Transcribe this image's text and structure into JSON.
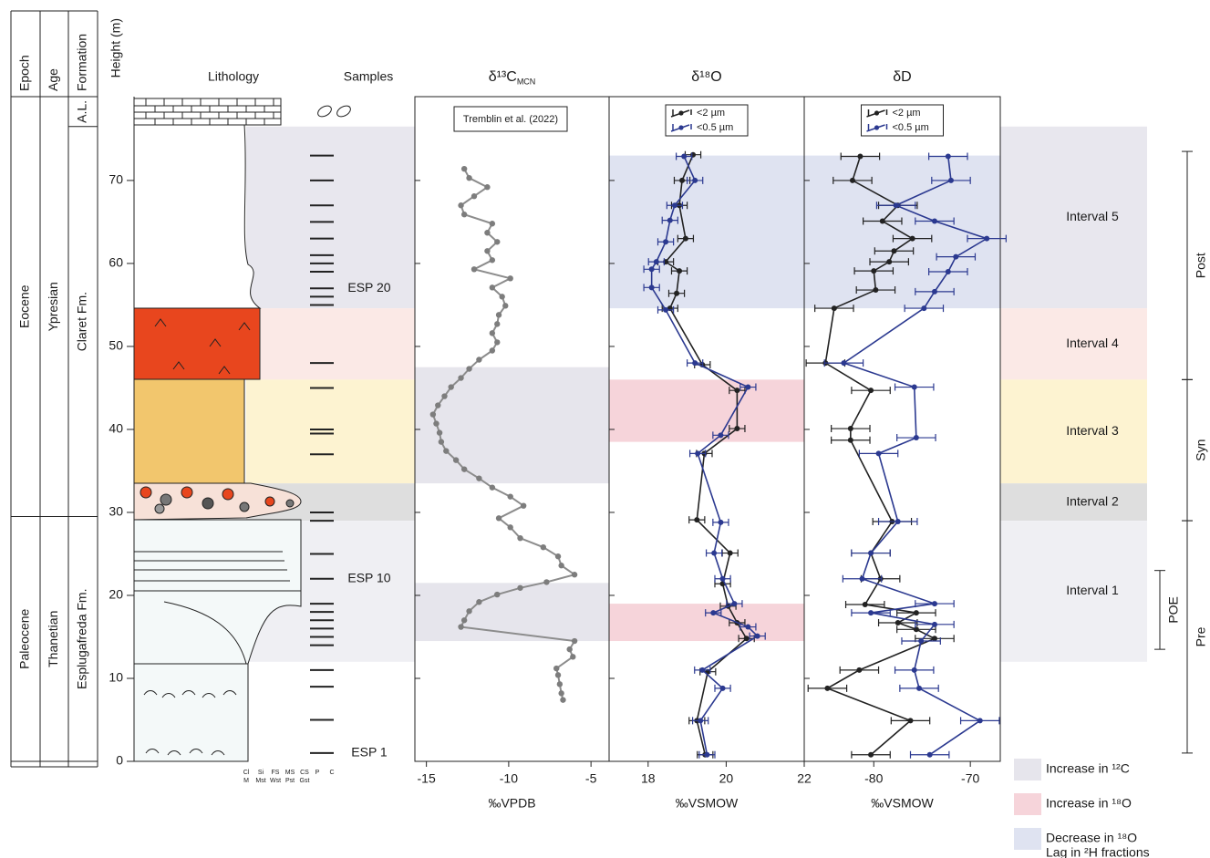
{
  "columns": {
    "headers": [
      "Epoch",
      "Age",
      "Formation"
    ],
    "epochs": [
      {
        "name": "Eocene",
        "range": [
          29.5,
          80.1
        ]
      },
      {
        "name": "Paleocene",
        "range": [
          0,
          29.5
        ]
      }
    ],
    "ages": [
      {
        "name": "Ypresian",
        "range": [
          29.5,
          80.1
        ]
      },
      {
        "name": "Thanetian",
        "range": [
          0,
          29.5
        ]
      }
    ],
    "formations": [
      {
        "name": "A.L.",
        "range": [
          76.5,
          80.1
        ]
      },
      {
        "name": "Claret Fm.",
        "range": [
          29.5,
          76.5
        ]
      },
      {
        "name": "Esplugafreda Fm.",
        "range": [
          0,
          29.5
        ]
      }
    ]
  },
  "height_axis": {
    "label": "Height (m)",
    "ylim": [
      0,
      80.1
    ],
    "yticks": [
      0,
      10,
      20,
      30,
      40,
      50,
      60,
      70
    ]
  },
  "lithology": {
    "title": "Lithology",
    "grain_top": [
      "Cl",
      "Si",
      "FS",
      "MS",
      "CS",
      "P",
      "C"
    ],
    "grain_bottom": [
      "M",
      "Mst",
      "Wst",
      "Pst",
      "Gst"
    ]
  },
  "samples": {
    "title": "Samples",
    "heights": [
      73,
      70,
      67,
      65,
      63,
      61,
      60,
      59,
      57,
      56,
      55,
      48,
      45,
      40,
      39.5,
      37,
      30,
      29,
      25,
      22,
      19,
      18,
      17,
      16,
      15,
      14,
      11,
      9,
      5,
      1
    ],
    "labels": [
      {
        "text": "ESP 20",
        "height": 57
      },
      {
        "text": "ESP 10",
        "height": 22
      },
      {
        "text": "ESP 1",
        "height": 1
      }
    ]
  },
  "intervals": [
    {
      "name": "Interval 5",
      "range": [
        54.6,
        76.5
      ],
      "color": "#e8e7ee"
    },
    {
      "name": "Interval 4",
      "range": [
        46,
        54.6
      ],
      "color": "#fbe9e6"
    },
    {
      "name": "Interval 3",
      "range": [
        33.5,
        46
      ],
      "color": "#fdf3d1"
    },
    {
      "name": "Interval 2",
      "range": [
        29,
        33.5
      ],
      "color": "#dedede"
    },
    {
      "name": "Interval 1",
      "range": [
        12,
        29
      ],
      "color": "#efeff3"
    }
  ],
  "phases": [
    {
      "name": "Post",
      "range": [
        46,
        73.5
      ]
    },
    {
      "name": "Syn",
      "range": [
        29,
        46
      ]
    },
    {
      "name": "Pre",
      "range": [
        1,
        29
      ]
    },
    {
      "name": "POE",
      "range": [
        13.5,
        23
      ]
    }
  ],
  "legend": [
    {
      "lines": [
        "Increase in ¹²C"
      ],
      "color": "#e6e5ec"
    },
    {
      "lines": [
        "Increase in ¹⁸O"
      ],
      "color": "#f6d4da"
    },
    {
      "lines": [
        "Decrease in ¹⁸O",
        "Lag in ²H fractions"
      ],
      "color": "#dfe3f1"
    }
  ],
  "chart_data": [
    {
      "type": "line",
      "title": "δ¹³C",
      "title_subscript": "MCN",
      "xlabel": "‰VPDB",
      "annotation": "Tremblin et al. (2022)",
      "xlim": [
        -15.7,
        -3.9
      ],
      "xticks": [
        -15,
        -10,
        -5
      ],
      "color": "#8c8c8c",
      "highlights": [
        {
          "range": [
            33.5,
            47.5
          ],
          "color": "#e6e5ec"
        },
        {
          "range": [
            14.5,
            21.5
          ],
          "color": "#e6e5ec"
        }
      ],
      "y": [
        7.4,
        8.2,
        9.3,
        10.4,
        11.2,
        12.6,
        13.5,
        14.5,
        16.2,
        17.0,
        18.1,
        19.2,
        20.1,
        20.9,
        21.6,
        22.5,
        23.6,
        24.7,
        25.8,
        26.9,
        28.2,
        29.3,
        30.8,
        31.9,
        33.0,
        34.1,
        35.2,
        36.3,
        37.4,
        38.5,
        39.6,
        40.7,
        41.8,
        42.9,
        44.0,
        45.1,
        46.2,
        47.3,
        48.4,
        49.5,
        50.5,
        51.6,
        52.7,
        53.8,
        54.9,
        56.0,
        57.1,
        58.2,
        59.3,
        60.4,
        61.5,
        62.6,
        63.7,
        64.8,
        65.9,
        67.0,
        68.1,
        69.2,
        70.3,
        71.4
      ],
      "values": [
        -6.7,
        -6.8,
        -6.9,
        -7.0,
        -7.1,
        -6.1,
        -6.3,
        -6.0,
        -12.9,
        -12.7,
        -12.4,
        -11.8,
        -10.7,
        -9.3,
        -7.7,
        -6.0,
        -6.8,
        -7.0,
        -7.9,
        -9.3,
        -9.9,
        -10.6,
        -9.1,
        -9.9,
        -11.0,
        -11.8,
        -12.7,
        -13.2,
        -13.8,
        -14.1,
        -14.2,
        -14.4,
        -14.6,
        -14.3,
        -13.9,
        -13.5,
        -12.9,
        -12.4,
        -11.8,
        -11.0,
        -10.7,
        -11.0,
        -10.7,
        -10.6,
        -10.2,
        -10.4,
        -11.0,
        -9.9,
        -12.1,
        -11.0,
        -11.3,
        -10.7,
        -11.3,
        -11.0,
        -12.7,
        -12.9,
        -12.1,
        -11.3,
        -12.4,
        -12.7
      ]
    },
    {
      "type": "errorbar",
      "title": "δ¹⁸O",
      "xlabel": "‰VSMOW",
      "xlim": [
        17,
        22
      ],
      "xticks": [
        18,
        20,
        22
      ],
      "highlights": [
        {
          "range": [
            54.6,
            73
          ],
          "color": "#dfe3f1"
        },
        {
          "range": [
            38.5,
            46
          ],
          "color": "#f6d4da"
        },
        {
          "range": [
            14.5,
            19
          ],
          "color": "#f6d4da"
        }
      ],
      "series": [
        {
          "name": "<2 µm",
          "color": "#222222",
          "y": [
            0.8,
            4.9,
            10.8,
            14.8,
            16.7,
            18.7,
            21.4,
            25.1,
            29.1,
            37.1,
            40.1,
            44.7,
            47.8,
            54.6,
            56.4,
            59.1,
            60.2,
            63.0,
            67.0,
            70.0,
            73.1
          ],
          "values": [
            19.46,
            19.25,
            19.53,
            20.52,
            20.28,
            20.05,
            19.91,
            20.1,
            19.25,
            19.44,
            20.28,
            20.28,
            19.39,
            18.56,
            18.73,
            18.8,
            18.45,
            18.96,
            18.8,
            18.87,
            19.15
          ],
          "errors": [
            0.2,
            0.2,
            0.2,
            0.2,
            0.2,
            0.2,
            0.2,
            0.2,
            0.2,
            0.2,
            0.2,
            0.2,
            0.2,
            0.2,
            0.2,
            0.2,
            0.2,
            0.2,
            0.2,
            0.2,
            0.2
          ]
        },
        {
          "name": "<0.5 µm",
          "color": "#2b3990",
          "y": [
            0.8,
            4.9,
            8.8,
            11.0,
            15.1,
            16.2,
            17.9,
            19.0,
            22.0,
            25.1,
            28.8,
            37.1,
            39.3,
            45.1,
            48.0,
            54.4,
            57.1,
            59.3,
            60.2,
            62.6,
            65.2,
            67.0,
            70.0,
            72.9
          ],
          "values": [
            19.51,
            19.34,
            19.91,
            19.39,
            20.8,
            20.56,
            19.67,
            20.21,
            19.91,
            19.69,
            19.86,
            19.27,
            19.86,
            20.56,
            19.2,
            18.45,
            18.09,
            18.09,
            18.21,
            18.45,
            18.56,
            18.68,
            19.2,
            18.92
          ],
          "errors": [
            0.2,
            0.2,
            0.2,
            0.2,
            0.2,
            0.2,
            0.2,
            0.2,
            0.2,
            0.2,
            0.2,
            0.2,
            0.2,
            0.2,
            0.2,
            0.2,
            0.2,
            0.2,
            0.2,
            0.2,
            0.2,
            0.2,
            0.2,
            0.2
          ]
        }
      ]
    },
    {
      "type": "errorbar",
      "title": "δD",
      "xlabel": "‰VSMOW",
      "xlim": [
        -87.2,
        -66.9
      ],
      "xticks": [
        -80,
        -70
      ],
      "highlights": [
        {
          "range": [
            54.6,
            73
          ],
          "color": "#dfe3f1"
        }
      ],
      "series": [
        {
          "name": "<2 µm",
          "color": "#222222",
          "y": [
            0.8,
            4.9,
            8.8,
            11.0,
            14.8,
            15.9,
            16.7,
            17.9,
            18.9,
            22.0,
            25.1,
            28.9,
            38.7,
            40.1,
            44.7,
            48.0,
            54.6,
            56.8,
            59.1,
            60.2,
            61.5,
            63.0,
            65.1,
            67.0,
            70.0,
            72.9
          ],
          "values": [
            -80.3,
            -76.2,
            -84.8,
            -81.5,
            -73.7,
            -75.6,
            -77.5,
            -75.6,
            -80.9,
            -79.3,
            -80.3,
            -78.1,
            -82.4,
            -82.4,
            -80.3,
            -85.0,
            -84.1,
            -79.8,
            -80.0,
            -78.4,
            -77.9,
            -76.0,
            -79.1,
            -77.5,
            -82.2,
            -81.4
          ],
          "errors": [
            2,
            2,
            2,
            2,
            2,
            2,
            2,
            2,
            2,
            2,
            2,
            2,
            2,
            2,
            2,
            2,
            2,
            2,
            2,
            2,
            2,
            2,
            2,
            2,
            2,
            2
          ]
        },
        {
          "name": "<0.5 µm",
          "color": "#2b3990",
          "y": [
            0.8,
            4.9,
            8.8,
            11.0,
            14.5,
            16.5,
            17.9,
            19.0,
            22.0,
            25.1,
            28.9,
            37.1,
            39.0,
            45.1,
            48.0,
            54.6,
            56.6,
            59.0,
            60.8,
            63.0,
            65.1,
            67.0,
            70.0,
            72.9
          ],
          "values": [
            -74.2,
            -69.0,
            -75.3,
            -75.8,
            -75.1,
            -73.7,
            -80.3,
            -73.7,
            -81.2,
            -80.3,
            -77.5,
            -79.5,
            -75.6,
            -75.8,
            -83.1,
            -74.8,
            -73.7,
            -72.3,
            -71.5,
            -68.3,
            -73.7,
            -77.7,
            -72.0,
            -72.3
          ],
          "errors": [
            2,
            2,
            2,
            2,
            2,
            2,
            2,
            2,
            2,
            2,
            2,
            2,
            2,
            2,
            2,
            2,
            2,
            2,
            2,
            2,
            2,
            2,
            2,
            2
          ]
        }
      ]
    }
  ]
}
